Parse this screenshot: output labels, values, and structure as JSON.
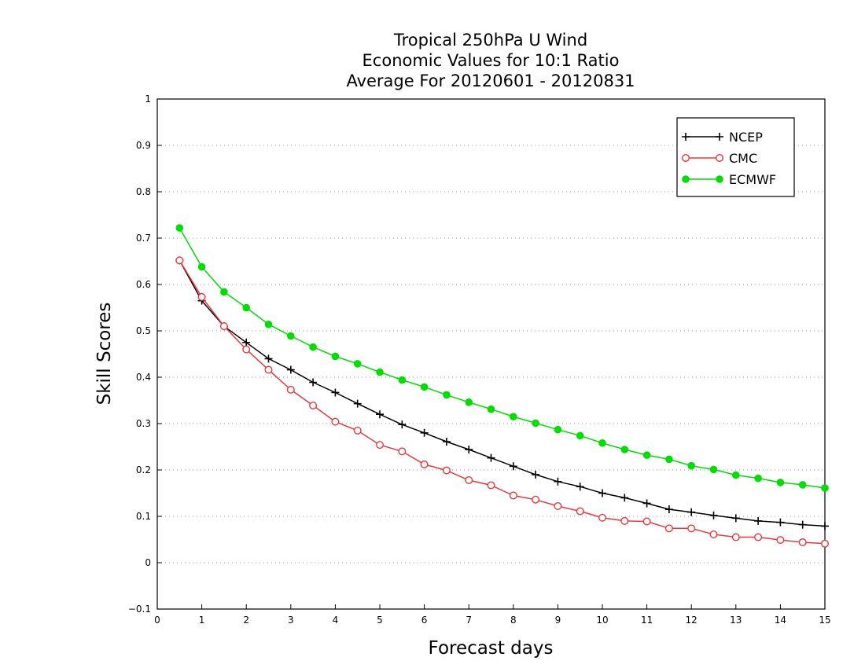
{
  "chart_data": {
    "type": "line",
    "title": [
      "Tropical 250hPa U Wind",
      "Economic Values for 10:1 Ratio",
      "Average For 20120601 - 20120831"
    ],
    "xlabel": "Forecast days",
    "ylabel": "Skill Scores",
    "xlim": [
      0,
      15
    ],
    "ylim": [
      -0.1,
      1
    ],
    "xticks": [
      "0",
      "1",
      "2",
      "3",
      "4",
      "5",
      "6",
      "7",
      "8",
      "9",
      "10",
      "11",
      "12",
      "13",
      "14",
      "15"
    ],
    "yticks": [
      "−0.1",
      "0",
      "0.1",
      "0.2",
      "0.3",
      "0.4",
      "0.5",
      "0.6",
      "0.7",
      "0.8",
      "0.9",
      "1"
    ],
    "grid": "horizontal dotted",
    "legend_position": "top-right",
    "x": [
      0.5,
      1,
      1.5,
      2,
      2.5,
      3,
      3.5,
      4,
      4.5,
      5,
      5.5,
      6,
      6.5,
      7,
      7.5,
      8,
      8.5,
      9,
      9.5,
      10,
      10.5,
      11,
      11.5,
      12,
      12.5,
      13,
      13.5,
      14,
      14.5,
      15
    ],
    "series": [
      {
        "name": "NCEP",
        "color": "#000000",
        "marker": "plus",
        "values": [
          0.652,
          0.565,
          0.51,
          0.475,
          0.44,
          0.416,
          0.389,
          0.367,
          0.343,
          0.32,
          0.298,
          0.28,
          0.261,
          0.244,
          0.226,
          0.208,
          0.19,
          0.175,
          0.164,
          0.15,
          0.14,
          0.128,
          0.115,
          0.109,
          0.102,
          0.096,
          0.09,
          0.087,
          0.082,
          0.079
        ]
      },
      {
        "name": "CMC",
        "color": "#e8383d",
        "marker": "open-circle",
        "values": [
          0.652,
          0.573,
          0.51,
          0.46,
          0.416,
          0.373,
          0.339,
          0.304,
          0.285,
          0.254,
          0.24,
          0.212,
          0.199,
          0.178,
          0.167,
          0.145,
          0.136,
          0.122,
          0.111,
          0.097,
          0.09,
          0.089,
          0.074,
          0.074,
          0.061,
          0.055,
          0.055,
          0.049,
          0.044,
          0.041
        ]
      },
      {
        "name": "ECMWF",
        "color": "#00dd00",
        "marker": "filled-circle",
        "values": [
          0.722,
          0.638,
          0.584,
          0.55,
          0.514,
          0.489,
          0.465,
          0.445,
          0.429,
          0.411,
          0.394,
          0.379,
          0.362,
          0.346,
          0.331,
          0.315,
          0.301,
          0.287,
          0.274,
          0.258,
          0.244,
          0.232,
          0.223,
          0.209,
          0.201,
          0.189,
          0.182,
          0.173,
          0.168,
          0.161
        ]
      }
    ]
  }
}
